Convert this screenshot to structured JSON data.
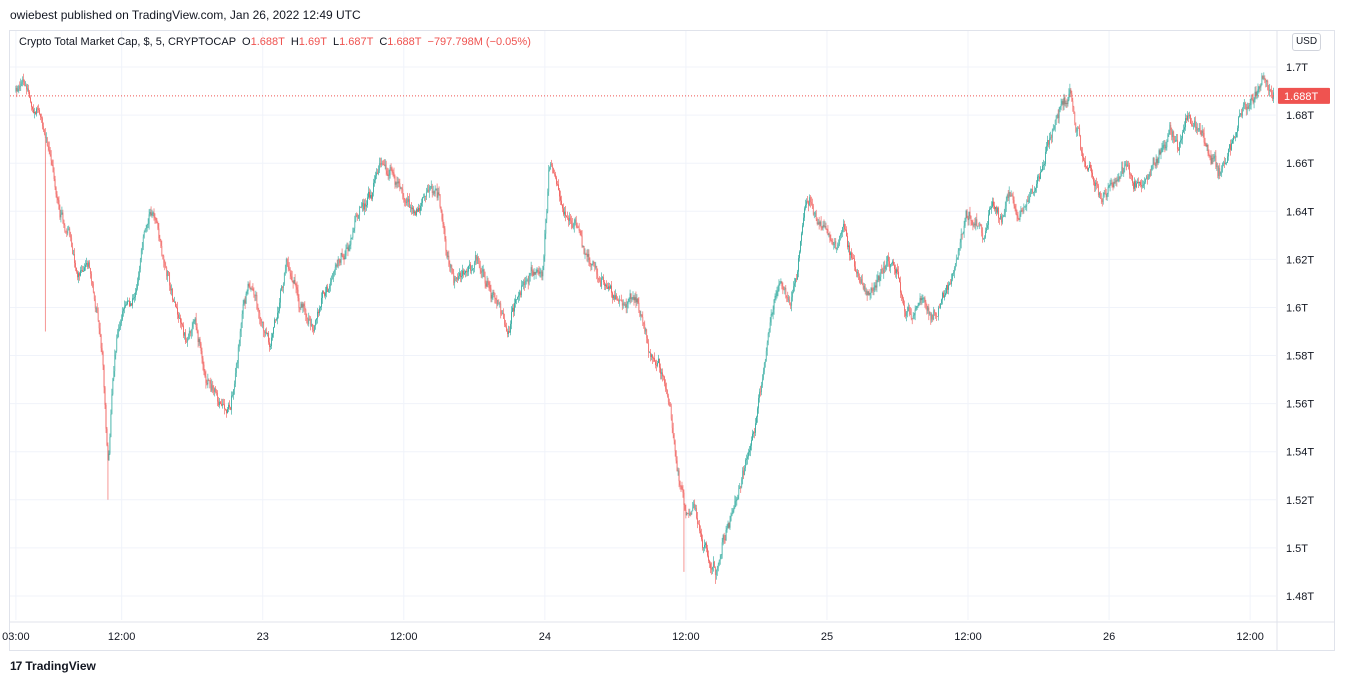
{
  "header": {
    "published_by": "owiebest published on TradingView.com, Jan 26, 2022 12:49 UTC"
  },
  "legend": {
    "symbol": "Crypto Total Market Cap, $, 5, CRYPTOCAP",
    "open_label": "O",
    "open": "1.688T",
    "high_label": "H",
    "high": "1.69T",
    "low_label": "L",
    "low": "1.687T",
    "close_label": "C",
    "close": "1.688T",
    "change": "−797.798M (−0.05%)"
  },
  "currency_button": "USD",
  "footer": {
    "brand": "TradingView",
    "brand_mark": "17"
  },
  "colors": {
    "up": "#26a69a",
    "down": "#ef5350",
    "grid": "#f0f3fa",
    "price_line": "#ef5350"
  },
  "chart_data": {
    "type": "candlestick",
    "title": "Crypto Total Market Cap, $, 5, CRYPTOCAP",
    "timeframe": "5",
    "unit": "USD (trillions)",
    "last_price": 1.688,
    "last_price_label": "1.688T",
    "y_range": [
      1.47,
      1.715
    ],
    "y_ticks": [
      {
        "value": 1.48,
        "label": "1.48T"
      },
      {
        "value": 1.5,
        "label": "1.5T"
      },
      {
        "value": 1.52,
        "label": "1.52T"
      },
      {
        "value": 1.54,
        "label": "1.54T"
      },
      {
        "value": 1.56,
        "label": "1.56T"
      },
      {
        "value": 1.58,
        "label": "1.58T"
      },
      {
        "value": 1.6,
        "label": "1.6T"
      },
      {
        "value": 1.62,
        "label": "1.62T"
      },
      {
        "value": 1.64,
        "label": "1.64T"
      },
      {
        "value": 1.66,
        "label": "1.66T"
      },
      {
        "value": 1.68,
        "label": "1.68T"
      },
      {
        "value": 1.7,
        "label": "1.7T"
      }
    ],
    "x_ticks": [
      {
        "t": 0,
        "label": "03:00"
      },
      {
        "t": 9,
        "label": "12:00"
      },
      {
        "t": 21,
        "label": "23"
      },
      {
        "t": 33,
        "label": "12:00"
      },
      {
        "t": 45,
        "label": "24"
      },
      {
        "t": 57,
        "label": "12:00"
      },
      {
        "t": 69,
        "label": "25"
      },
      {
        "t": 81,
        "label": "12:00"
      },
      {
        "t": 93,
        "label": "26"
      },
      {
        "t": 105,
        "label": "12:00"
      }
    ],
    "x_range_hours": [
      -0.5,
      107.2
    ],
    "path": [
      [
        0,
        1.69
      ],
      [
        0.5,
        1.695
      ],
      [
        1.2,
        1.685
      ],
      [
        2,
        1.68
      ],
      [
        3,
        1.66
      ],
      [
        3.6,
        1.64
      ],
      [
        4.5,
        1.63
      ],
      [
        5.2,
        1.61
      ],
      [
        6,
        1.62
      ],
      [
        6.8,
        1.6
      ],
      [
        7.3,
        1.58
      ],
      [
        7.8,
        1.53
      ],
      [
        8.3,
        1.58
      ],
      [
        9,
        1.6
      ],
      [
        10,
        1.605
      ],
      [
        11,
        1.635
      ],
      [
        11.6,
        1.64
      ],
      [
        12.5,
        1.62
      ],
      [
        13.5,
        1.6
      ],
      [
        14.5,
        1.585
      ],
      [
        15.2,
        1.595
      ],
      [
        16,
        1.57
      ],
      [
        16.8,
        1.565
      ],
      [
        17.5,
        1.56
      ],
      [
        18,
        1.555
      ],
      [
        18.6,
        1.57
      ],
      [
        19.2,
        1.6
      ],
      [
        20,
        1.61
      ],
      [
        20.8,
        1.595
      ],
      [
        21.5,
        1.585
      ],
      [
        22.2,
        1.6
      ],
      [
        23,
        1.62
      ],
      [
        23.8,
        1.605
      ],
      [
        24.6,
        1.595
      ],
      [
        25.3,
        1.59
      ],
      [
        26,
        1.605
      ],
      [
        26.8,
        1.61
      ],
      [
        27.5,
        1.62
      ],
      [
        28.3,
        1.625
      ],
      [
        29,
        1.64
      ],
      [
        30,
        1.645
      ],
      [
        31,
        1.66
      ],
      [
        32,
        1.655
      ],
      [
        33,
        1.645
      ],
      [
        34,
        1.64
      ],
      [
        35,
        1.65
      ],
      [
        36,
        1.645
      ],
      [
        36.7,
        1.62
      ],
      [
        37.3,
        1.61
      ],
      [
        38,
        1.615
      ],
      [
        39,
        1.62
      ],
      [
        40,
        1.61
      ],
      [
        41,
        1.6
      ],
      [
        41.8,
        1.59
      ],
      [
        42.5,
        1.605
      ],
      [
        43.2,
        1.61
      ],
      [
        44,
        1.615
      ],
      [
        44.8,
        1.615
      ],
      [
        45.3,
        1.66
      ],
      [
        45.8,
        1.655
      ],
      [
        46.5,
        1.64
      ],
      [
        47.5,
        1.635
      ],
      [
        48.3,
        1.625
      ],
      [
        49.2,
        1.615
      ],
      [
        50,
        1.61
      ],
      [
        51,
        1.605
      ],
      [
        51.8,
        1.6
      ],
      [
        52.6,
        1.605
      ],
      [
        53.3,
        1.595
      ],
      [
        54,
        1.58
      ],
      [
        54.8,
        1.575
      ],
      [
        55.5,
        1.56
      ],
      [
        56,
        1.54
      ],
      [
        56.5,
        1.525
      ],
      [
        57,
        1.51
      ],
      [
        57.6,
        1.52
      ],
      [
        58.2,
        1.505
      ],
      [
        58.8,
        1.495
      ],
      [
        59.5,
        1.49
      ],
      [
        60.2,
        1.505
      ],
      [
        60.9,
        1.515
      ],
      [
        61.5,
        1.525
      ],
      [
        62.2,
        1.54
      ],
      [
        62.8,
        1.55
      ],
      [
        63.4,
        1.57
      ],
      [
        64,
        1.59
      ],
      [
        64.6,
        1.605
      ],
      [
        65.2,
        1.61
      ],
      [
        65.8,
        1.6
      ],
      [
        66.4,
        1.615
      ],
      [
        67,
        1.64
      ],
      [
        67.6,
        1.645
      ],
      [
        68.2,
        1.635
      ],
      [
        69,
        1.63
      ],
      [
        69.8,
        1.625
      ],
      [
        70.4,
        1.635
      ],
      [
        71,
        1.62
      ],
      [
        71.8,
        1.61
      ],
      [
        72.5,
        1.605
      ],
      [
        73.2,
        1.61
      ],
      [
        74,
        1.62
      ],
      [
        74.8,
        1.615
      ],
      [
        75.5,
        1.6
      ],
      [
        76.3,
        1.595
      ],
      [
        77,
        1.605
      ],
      [
        77.8,
        1.595
      ],
      [
        78.5,
        1.6
      ],
      [
        79.2,
        1.61
      ],
      [
        80,
        1.62
      ],
      [
        80.8,
        1.64
      ],
      [
        81.5,
        1.635
      ],
      [
        82.3,
        1.63
      ],
      [
        83,
        1.645
      ],
      [
        83.8,
        1.635
      ],
      [
        84.5,
        1.65
      ],
      [
        85.2,
        1.635
      ],
      [
        86,
        1.645
      ],
      [
        86.8,
        1.65
      ],
      [
        87.5,
        1.665
      ],
      [
        88.2,
        1.675
      ],
      [
        89,
        1.685
      ],
      [
        89.6,
        1.69
      ],
      [
        90.2,
        1.675
      ],
      [
        90.8,
        1.66
      ],
      [
        91.5,
        1.655
      ],
      [
        92.2,
        1.645
      ],
      [
        93,
        1.65
      ],
      [
        93.8,
        1.655
      ],
      [
        94.5,
        1.66
      ],
      [
        95.2,
        1.65
      ],
      [
        96,
        1.655
      ],
      [
        96.8,
        1.66
      ],
      [
        97.5,
        1.665
      ],
      [
        98.2,
        1.675
      ],
      [
        98.9,
        1.665
      ],
      [
        99.6,
        1.68
      ],
      [
        100.3,
        1.675
      ],
      [
        101,
        1.67
      ],
      [
        101.8,
        1.66
      ],
      [
        102.5,
        1.655
      ],
      [
        103.2,
        1.665
      ],
      [
        104,
        1.68
      ],
      [
        104.8,
        1.685
      ],
      [
        105.5,
        1.69
      ],
      [
        106,
        1.695
      ],
      [
        106.5,
        1.69
      ],
      [
        107,
        1.688
      ]
    ]
  }
}
